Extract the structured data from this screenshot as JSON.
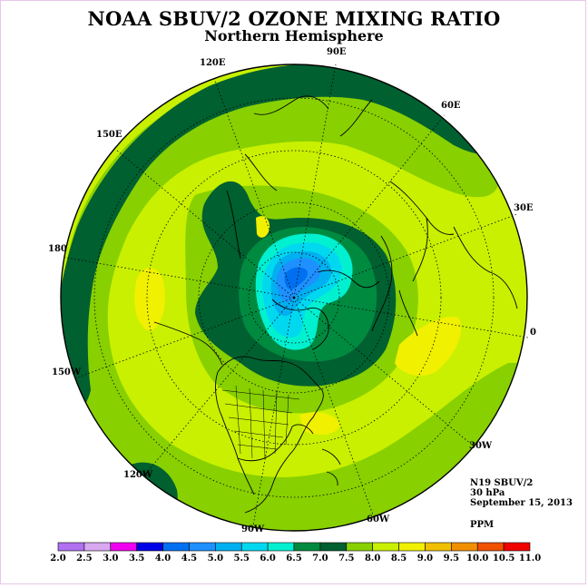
{
  "title": "NOAA SBUV/2 OZONE MIXING RATIO",
  "subtitle": "Northern Hemisphere",
  "meridian_labels": {
    "lon_90E": "90E",
    "lon_120E": "120E",
    "lon_60E": "60E",
    "lon_150E": "150E",
    "lon_30E": "30E",
    "lon_180": "180",
    "lon_0": "0",
    "lon_150W": "150W",
    "lon_30W": "30W",
    "lon_120W": "120W",
    "lon_60W": "60W",
    "lon_90W": "90W"
  },
  "info": {
    "instrument": "N19 SBUV/2",
    "level": "30 hPa",
    "date": "September 15, 2013",
    "units": "PPM"
  },
  "colorbar": {
    "ticks": [
      "2.0",
      "2.5",
      "3.0",
      "3.5",
      "4.0",
      "4.5",
      "5.0",
      "5.5",
      "6.0",
      "6.5",
      "7.0",
      "7.5",
      "8.0",
      "8.5",
      "9.0",
      "9.5",
      "10.0",
      "10.5",
      "11.0"
    ],
    "colors": [
      "#b070f0",
      "#d8a8f0",
      "#f000f0",
      "#0000e8",
      "#0070f0",
      "#1e90ff",
      "#00b0f0",
      "#00d8f0",
      "#00f0d0",
      "#008a40",
      "#006030",
      "#88d000",
      "#c8f000",
      "#f0f000",
      "#f0c000",
      "#f09000",
      "#f05000",
      "#f00000",
      "#8b5a3c"
    ]
  },
  "map_colors": {
    "level_7_0": "#006030",
    "level_6_5": "#008a40",
    "level_7_5": "#88d000",
    "level_8_0": "#c8f000",
    "level_8_5": "#f0f000",
    "level_6_0": "#00f0d0",
    "level_5_5": "#00d8f0",
    "level_5_0": "#00b0f0",
    "level_4_5": "#1e90ff",
    "level_4_0": "#0070f0"
  }
}
